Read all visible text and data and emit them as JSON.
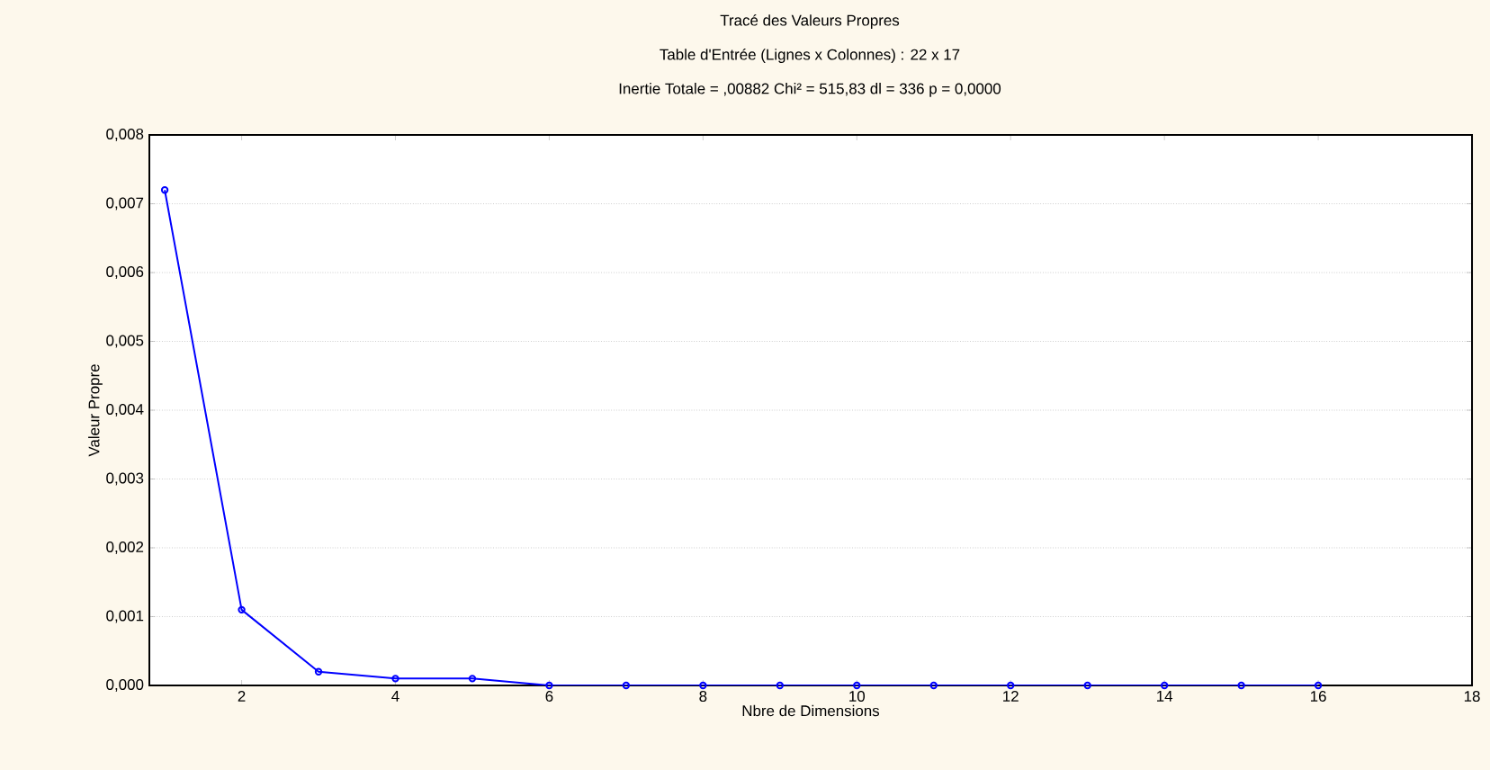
{
  "chart_data": {
    "type": "line",
    "title": "Tracé des Valeurs Propres",
    "subtitle": "Table d'Entrée (Lignes x Colonnes) : 22 x 17",
    "annotations": [
      "Inertie Totale = ,00882 Chi² = 515,83 dl = 336 p = 0,0000"
    ],
    "xlabel": "Nbre de Dimensions",
    "ylabel": "Valeur Propre",
    "x": [
      1,
      2,
      3,
      4,
      5,
      6,
      7,
      8,
      9,
      10,
      11,
      12,
      13,
      14,
      15,
      16
    ],
    "series": [
      {
        "color": "#0000ff",
        "values": [
          0.0072,
          0.0011,
          0.0002,
          0.0001,
          0.0001,
          0,
          0,
          0,
          0,
          0,
          0,
          0,
          0,
          0,
          0,
          0
        ]
      }
    ],
    "xlim": [
      0.8,
      18
    ],
    "ylim": [
      0,
      0.008
    ],
    "xticks": [
      2,
      4,
      6,
      8,
      10,
      12,
      14,
      16,
      18
    ],
    "yticks": [
      {
        "value": 0,
        "label": "0,000"
      },
      {
        "value": 0.001,
        "label": "0,001"
      },
      {
        "value": 0.002,
        "label": "0,002"
      },
      {
        "value": 0.003,
        "label": "0,003"
      },
      {
        "value": 0.004,
        "label": "0,004"
      },
      {
        "value": 0.005,
        "label": "0,005"
      },
      {
        "value": 0.006,
        "label": "0,006"
      },
      {
        "value": 0.007,
        "label": "0,007"
      },
      {
        "value": 0.008,
        "label": "0,008"
      }
    ],
    "grid": "y",
    "marker": "circle",
    "line_style": "solid"
  }
}
